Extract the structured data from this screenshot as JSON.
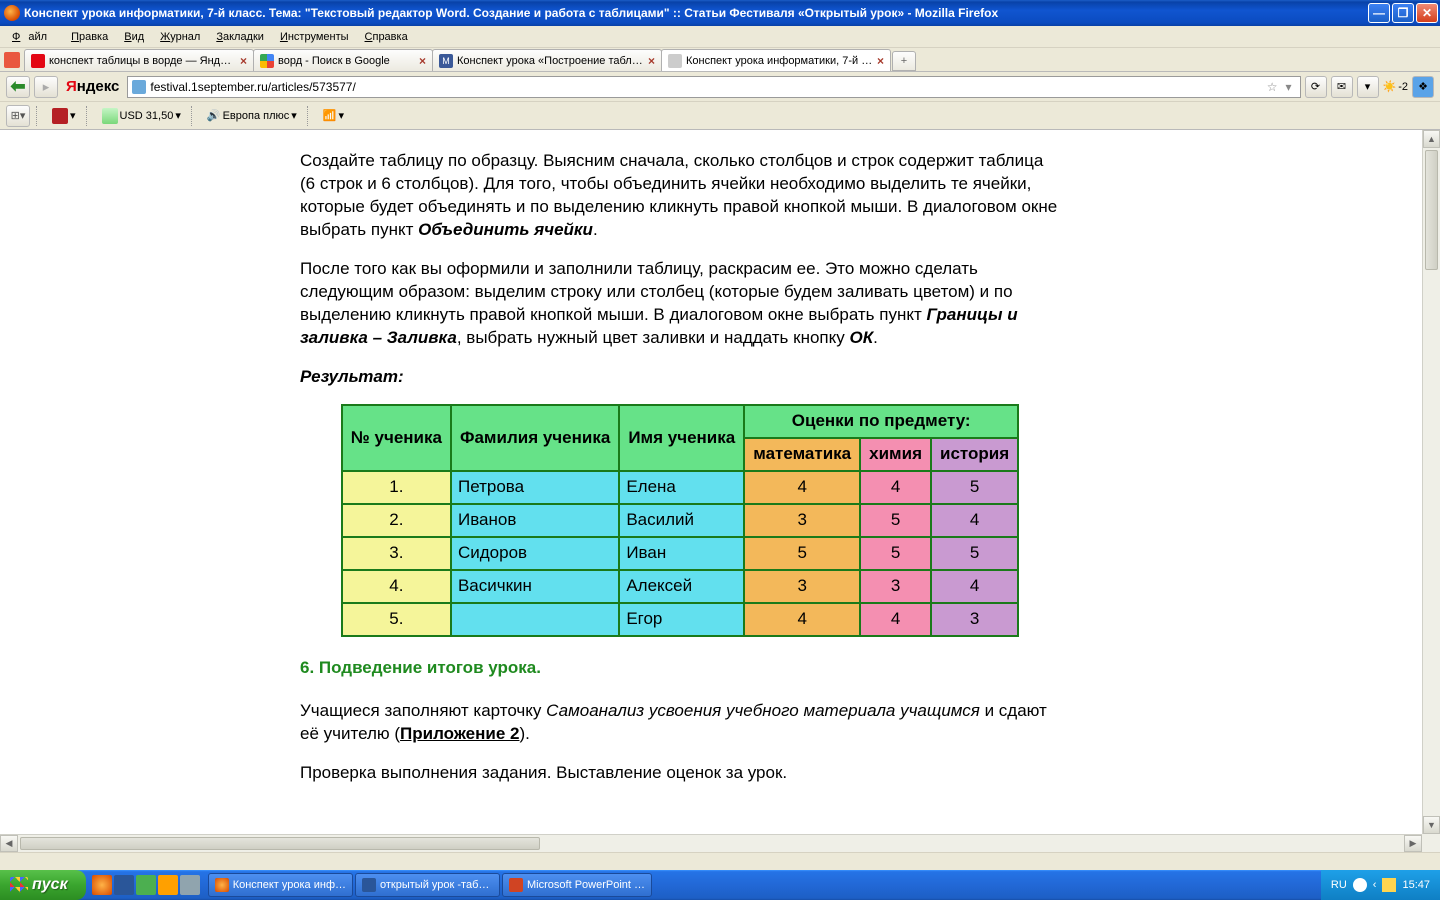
{
  "window": {
    "title": "Конспект урока информатики, 7-й класс. Тема: \"Текстовый редактор Word. Создание и работа с таблицами\" :: Статьи Фестиваля «Открытый урок» - Mozilla Firefox"
  },
  "menu": {
    "items": [
      "Файл",
      "Правка",
      "Вид",
      "Журнал",
      "Закладки",
      "Инструменты",
      "Справка"
    ]
  },
  "tabs": [
    {
      "label": "конспект таблицы в ворде — Яндекс: …",
      "favcolor": "#e30613",
      "active": false
    },
    {
      "label": "ворд - Поиск в Google",
      "favcolor": "#4285f4",
      "active": false
    },
    {
      "label": "Конспект урока «Построение таблиц в…",
      "favcolor": "#3b5998",
      "active": false
    },
    {
      "label": "Конспект урока информатики, 7-й кла…",
      "favcolor": "#888",
      "active": true
    }
  ],
  "url": "festival.1september.ru/articles/573577/",
  "toolbar": {
    "usd_label": "USD 31,50",
    "radio_label": "Европа плюс",
    "weather_temp": "-2"
  },
  "article": {
    "p1_a": "Создайте таблицу по образцу. Выясним сначала, сколько столбцов и строк содержит таблица (6 строк и 6 столбцов). Для того, чтобы объединить ячейки необходимо выделить те ячейки, которые будет объединять и по выделению кликнуть правой кнопкой мыши. В диалоговом окне выбрать пункт ",
    "p1_b": "Объединить ячейки",
    "p1_c": ".",
    "p2_a": "После того как вы оформили и заполнили таблицу, раскрасим ее. Это можно сделать следующим образом: выделим строку или столбец (которые будем заливать цветом) и по выделению кликнуть правой кнопкой мыши. В диалоговом окне выбрать пункт ",
    "p2_b": "Границы и заливка – Заливка",
    "p2_c": ", выбрать нужный цвет заливки и наддать кнопку ",
    "p2_d": "ОК",
    "p2_e": ".",
    "result_label": "Результат:",
    "h6": "6. Подведение итогов урока.",
    "p3_a": "Учащиеся заполняют карточку ",
    "p3_b": "Самоанализ усвоения учебного материала учащимся",
    "p3_c": " и сдают её учителю (",
    "p3_link": "Приложение 2",
    "p3_d": ").",
    "p4": "Проверка выполнения задания. Выставление оценок за урок."
  },
  "table": {
    "type": "table",
    "border_color": "#1a7a1a",
    "colors": {
      "header_green": "#66e288",
      "col_num": "#f5f59a",
      "col_fam": "#62e0ee",
      "col_name": "#62e0ee",
      "col_math": "#f3b85a",
      "col_chem": "#f48fb1",
      "col_hist": "#c99ad1"
    },
    "headers": {
      "num": "№ ученика",
      "fam": "Фамилия ученика",
      "name": "Имя ученика",
      "grades": "Оценки по предмету:",
      "math": "математика",
      "chem": "химия",
      "hist": "история"
    },
    "rows": [
      {
        "n": "1.",
        "fam": "Петрова",
        "name": "Елена",
        "m": "4",
        "c": "4",
        "h": "5"
      },
      {
        "n": "2.",
        "fam": "Иванов",
        "name": "Василий",
        "m": "3",
        "c": "5",
        "h": "4"
      },
      {
        "n": "3.",
        "fam": "Сидоров",
        "name": "Иван",
        "m": "5",
        "c": "5",
        "h": "5"
      },
      {
        "n": "4.",
        "fam": "Васичкин",
        "name": "Алексей",
        "m": "3",
        "c": "3",
        "h": "4"
      },
      {
        "n": "5.",
        "fam": "",
        "name": "Егор",
        "m": "4",
        "c": "4",
        "h": "3"
      }
    ]
  },
  "taskbar": {
    "start": "пуск",
    "items": [
      {
        "label": "Конспект урока инф…",
        "color": "#d84a00"
      },
      {
        "label": "открытый урок -таб…",
        "color": "#2a5699"
      },
      {
        "label": "Microsoft PowerPoint …",
        "color": "#d04423"
      }
    ],
    "lang": "RU",
    "time": "15:47"
  }
}
